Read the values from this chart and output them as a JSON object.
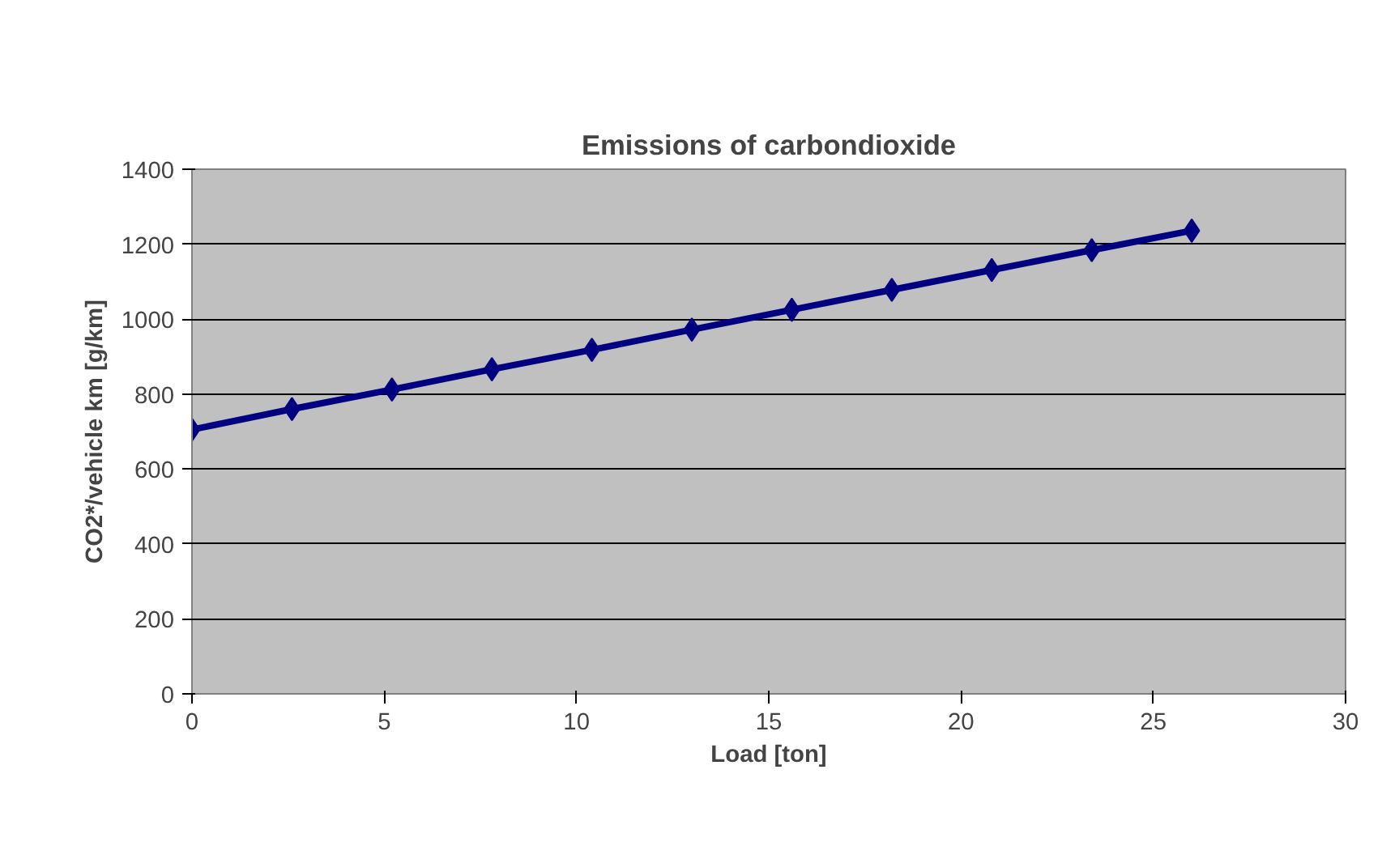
{
  "chart_data": {
    "type": "line",
    "title": "Emissions of carbondioxide",
    "xlabel": "Load [ton]",
    "ylabel": "CO2*/vehicle km [g/km]",
    "series": [
      {
        "color": "#000080",
        "x": [
          0,
          2.6,
          5.2,
          7.8,
          10.4,
          13,
          15.6,
          18.2,
          20.8,
          23.4,
          26
        ],
        "values": [
          705,
          760,
          812,
          866,
          918,
          972,
          1025,
          1078,
          1131,
          1184,
          1236
        ]
      }
    ],
    "xlim": [
      0,
      30
    ],
    "xticks": [
      0,
      5,
      10,
      15,
      20,
      25,
      30
    ],
    "ylim": [
      0,
      1400
    ],
    "yticks": [
      0,
      200,
      400,
      600,
      800,
      1000,
      1200,
      1400
    ],
    "grid": "y",
    "marker": "diamond",
    "line_style": "solid"
  }
}
